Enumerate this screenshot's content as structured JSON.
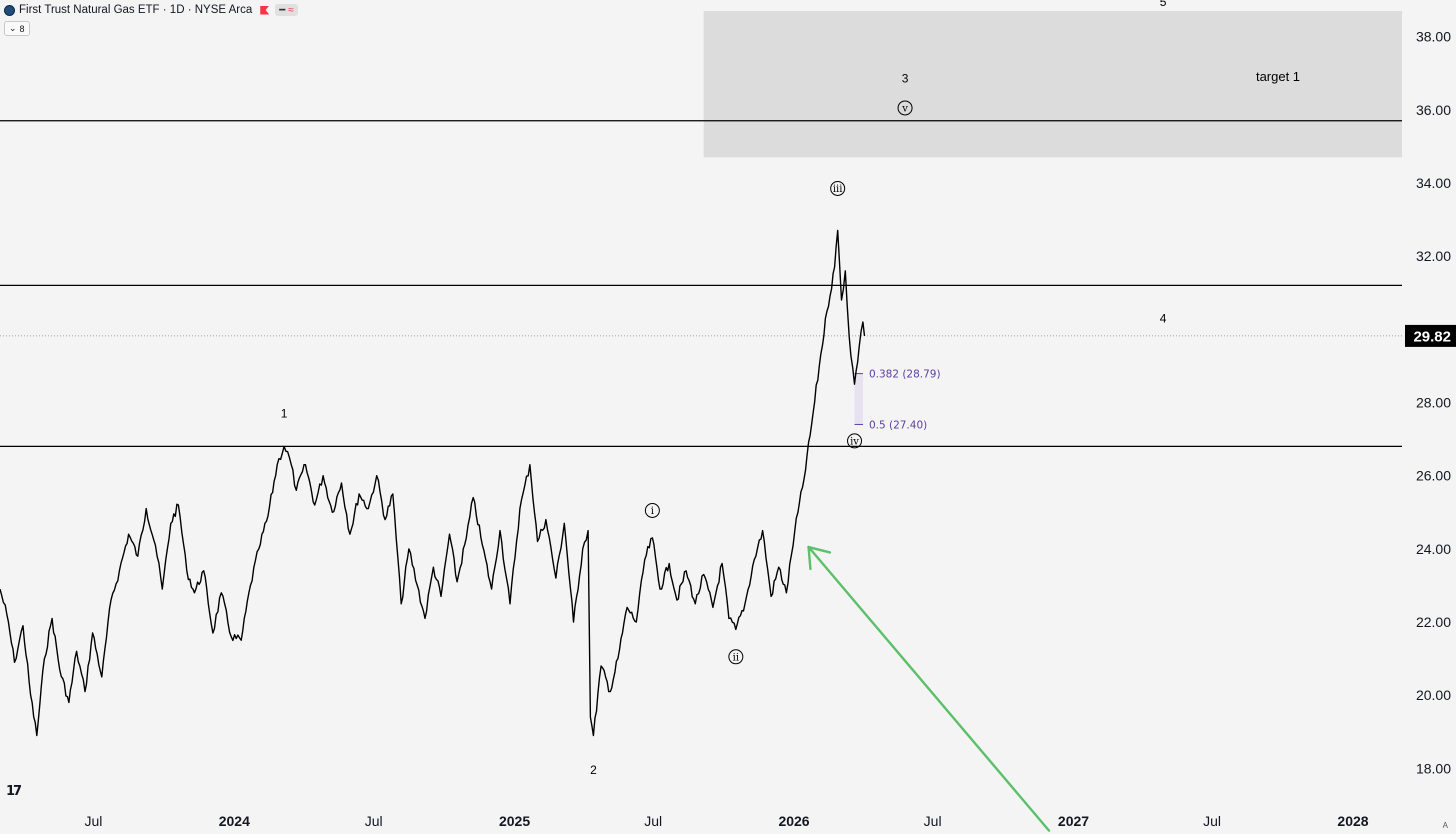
{
  "header": {
    "title": "First Trust Natural Gas ETF · 1D · NYSE Arca",
    "indicator_count": "8"
  },
  "icons": {
    "symbol_logo": "circle-logo-icon",
    "flag": "red-flag-icon",
    "tradingview": "tradingview-logo-icon",
    "collapse": "chevron-down-icon"
  },
  "colors": {
    "background": "#f4f4f4",
    "price_line": "#000000",
    "arrow": "#5cbf6a",
    "fib": "#5b3fa3",
    "fib_fill": "#e6e2f0",
    "target_zone": "#dcdcdc",
    "last_price_badge": "#000000"
  },
  "chart_data": {
    "type": "line",
    "series": [
      {
        "values": [
          [
            "2023-03-01",
            22.9
          ],
          [
            "2023-03-10",
            22.2
          ],
          [
            "2023-03-20",
            20.9
          ],
          [
            "2023-03-31",
            21.9
          ],
          [
            "2023-04-10",
            20.0
          ],
          [
            "2023-04-18",
            18.9
          ],
          [
            "2023-04-28",
            21.0
          ],
          [
            "2023-05-08",
            22.1
          ],
          [
            "2023-05-18",
            20.7
          ],
          [
            "2023-05-30",
            19.8
          ],
          [
            "2023-06-09",
            21.2
          ],
          [
            "2023-06-20",
            20.1
          ],
          [
            "2023-06-30",
            21.7
          ],
          [
            "2023-07-12",
            20.5
          ],
          [
            "2023-07-24",
            22.6
          ],
          [
            "2023-08-04",
            23.4
          ],
          [
            "2023-08-16",
            24.4
          ],
          [
            "2023-08-28",
            23.8
          ],
          [
            "2023-09-08",
            25.1
          ],
          [
            "2023-09-20",
            24.1
          ],
          [
            "2023-09-29",
            22.9
          ],
          [
            "2023-10-10",
            24.7
          ],
          [
            "2023-10-20",
            25.2
          ],
          [
            "2023-10-31",
            23.4
          ],
          [
            "2023-11-10",
            22.8
          ],
          [
            "2023-11-22",
            23.4
          ],
          [
            "2023-12-04",
            21.7
          ],
          [
            "2023-12-15",
            22.8
          ],
          [
            "2023-12-28",
            21.6
          ],
          [
            "2024-01-10",
            21.5
          ],
          [
            "2024-01-22",
            23.0
          ],
          [
            "2024-02-02",
            24.0
          ],
          [
            "2024-02-14",
            24.9
          ],
          [
            "2024-02-26",
            26.3
          ],
          [
            "2024-03-06",
            26.8
          ],
          [
            "2024-03-13",
            26.5
          ],
          [
            "2024-03-22",
            25.6
          ],
          [
            "2024-04-03",
            26.3
          ],
          [
            "2024-04-15",
            25.2
          ],
          [
            "2024-04-26",
            26.0
          ],
          [
            "2024-05-08",
            25.0
          ],
          [
            "2024-05-20",
            25.8
          ],
          [
            "2024-05-31",
            24.4
          ],
          [
            "2024-06-12",
            25.5
          ],
          [
            "2024-06-24",
            25.1
          ],
          [
            "2024-07-05",
            26.0
          ],
          [
            "2024-07-16",
            24.8
          ],
          [
            "2024-07-26",
            25.5
          ],
          [
            "2024-08-06",
            22.5
          ],
          [
            "2024-08-16",
            24.0
          ],
          [
            "2024-08-27",
            23.0
          ],
          [
            "2024-09-06",
            22.1
          ],
          [
            "2024-09-17",
            23.5
          ],
          [
            "2024-09-27",
            22.7
          ],
          [
            "2024-10-08",
            24.4
          ],
          [
            "2024-10-18",
            23.1
          ],
          [
            "2024-10-30",
            24.3
          ],
          [
            "2024-11-08",
            25.4
          ],
          [
            "2024-11-20",
            24.1
          ],
          [
            "2024-12-02",
            22.9
          ],
          [
            "2024-12-13",
            24.5
          ],
          [
            "2024-12-26",
            22.5
          ],
          [
            "2025-01-08",
            25.1
          ],
          [
            "2025-01-21",
            26.3
          ],
          [
            "2025-01-31",
            24.2
          ],
          [
            "2025-02-11",
            24.8
          ],
          [
            "2025-02-24",
            23.2
          ],
          [
            "2025-03-07",
            24.7
          ],
          [
            "2025-03-19",
            22.0
          ],
          [
            "2025-03-31",
            24.0
          ],
          [
            "2025-04-07",
            24.5
          ],
          [
            "2025-04-10",
            19.4
          ],
          [
            "2025-04-14",
            18.9
          ],
          [
            "2025-04-24",
            20.8
          ],
          [
            "2025-05-06",
            20.1
          ],
          [
            "2025-05-16",
            21.0
          ],
          [
            "2025-05-28",
            22.4
          ],
          [
            "2025-06-09",
            22.0
          ],
          [
            "2025-06-20",
            23.7
          ],
          [
            "2025-06-30",
            24.3
          ],
          [
            "2025-07-10",
            22.9
          ],
          [
            "2025-07-22",
            23.6
          ],
          [
            "2025-08-01",
            22.6
          ],
          [
            "2025-08-13",
            23.4
          ],
          [
            "2025-08-25",
            22.5
          ],
          [
            "2025-09-05",
            23.3
          ],
          [
            "2025-09-17",
            22.4
          ],
          [
            "2025-09-29",
            23.6
          ],
          [
            "2025-10-08",
            22.1
          ],
          [
            "2025-10-17",
            21.8
          ],
          [
            "2025-10-29",
            22.5
          ],
          [
            "2025-11-10",
            23.7
          ],
          [
            "2025-11-21",
            24.5
          ],
          [
            "2025-12-02",
            22.7
          ],
          [
            "2025-12-12",
            23.5
          ],
          [
            "2025-12-22",
            22.8
          ],
          [
            "2026-01-02",
            24.5
          ],
          [
            "2026-01-14",
            25.9
          ],
          [
            "2026-01-24",
            27.4
          ],
          [
            "2026-02-03",
            29.0
          ],
          [
            "2026-02-13",
            30.5
          ],
          [
            "2026-02-23",
            31.7
          ],
          [
            "2026-02-27",
            32.7
          ],
          [
            "2026-03-04",
            30.8
          ],
          [
            "2026-03-09",
            31.6
          ],
          [
            "2026-03-14",
            29.8
          ],
          [
            "2026-03-21",
            28.5
          ],
          [
            "2026-03-27",
            29.5
          ],
          [
            "2026-04-01",
            30.2
          ],
          [
            "2026-04-03",
            29.82
          ]
        ]
      }
    ],
    "x_axis": {
      "ticks": [
        "Jul",
        "2024",
        "Jul",
        "2025",
        "Jul",
        "2026",
        "Jul",
        "2027",
        "Jul",
        "2028"
      ],
      "range": [
        "2023-03-01",
        "2028-03-05"
      ]
    },
    "y_axis": {
      "ticks": [
        "18.00",
        "20.00",
        "22.00",
        "24.00",
        "26.00",
        "28.00",
        "30.00",
        "32.00",
        "34.00",
        "36.00",
        "38.00"
      ],
      "range": [
        17.0,
        39.0
      ],
      "side": "right"
    },
    "last_price": "29.82",
    "horizontal_lines": [
      26.8,
      31.2,
      35.7
    ],
    "target_zone": {
      "x_range": [
        "2025-09-05",
        "2028-03-05"
      ],
      "y_range": [
        34.7,
        38.7
      ],
      "label": "target 1"
    },
    "fib_retracement": {
      "x_range": [
        "2026-03-21",
        "2026-04-01"
      ],
      "levels": [
        {
          "value": 28.79,
          "label": "0.382 (28.79)"
        },
        {
          "value": 27.4,
          "label": "0.5 (27.40)"
        }
      ]
    },
    "wave_labels": [
      {
        "text": "1",
        "date": "2024-03-06",
        "price": 27.7,
        "circled": false
      },
      {
        "text": "2",
        "date": "2025-04-14",
        "price": 17.95,
        "circled": false
      },
      {
        "text": "i",
        "date": "2025-06-30",
        "price": 25.05,
        "circled": true
      },
      {
        "text": "ii",
        "date": "2025-10-17",
        "price": 21.05,
        "circled": true
      },
      {
        "text": "iii",
        "date": "2026-02-27",
        "price": 33.85,
        "circled": true
      },
      {
        "text": "iv",
        "date": "2026-03-21",
        "price": 26.95,
        "circled": true
      },
      {
        "text": "v",
        "date": "2026-05-26",
        "price": 36.05,
        "circled": true
      },
      {
        "text": "3",
        "date": "2026-05-26",
        "price": 36.85,
        "circled": false
      },
      {
        "text": "4",
        "date": "2027-04-28",
        "price": 30.3,
        "circled": false
      },
      {
        "text": "5",
        "date": "2027-04-28",
        "price": 38.95,
        "circled": false
      }
    ],
    "arrow": {
      "from": [
        "2026-11-30",
        16.3
      ],
      "to": [
        "2026-01-20",
        24.05
      ]
    },
    "grid": false
  }
}
